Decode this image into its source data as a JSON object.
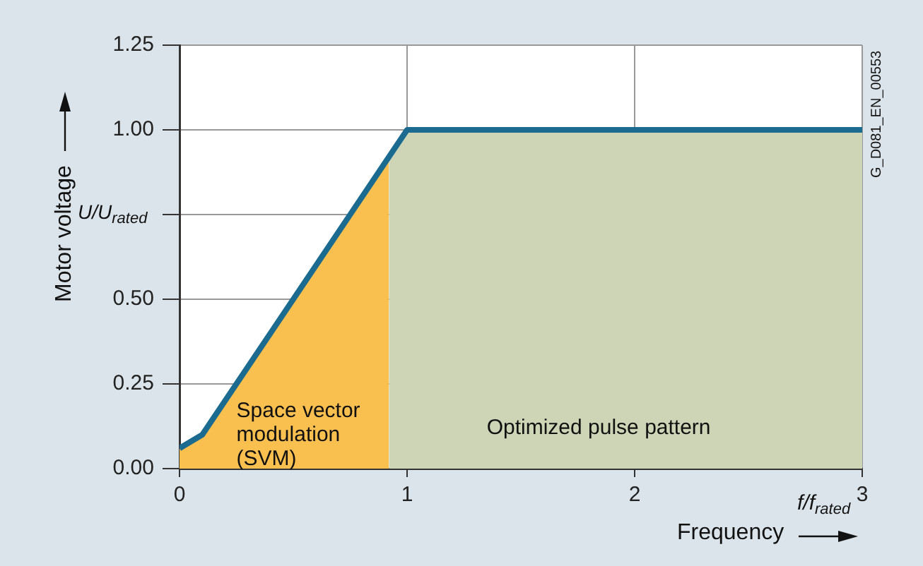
{
  "chart_data": {
    "type": "line",
    "xlabel": "Frequency",
    "ylabel": "Motor voltage",
    "xlim": [
      0,
      3
    ],
    "xticks": [
      0,
      1,
      2,
      3
    ],
    "ylim": [
      0,
      1.25
    ],
    "yticks": [
      {
        "value": 0,
        "label": "0.00"
      },
      {
        "value": 0.25,
        "label": "0.25"
      },
      {
        "value": 0.5,
        "label": "0.50"
      },
      {
        "value": 0.75,
        "label": null
      },
      {
        "value": 1,
        "label": "1.00"
      },
      1.25
    ],
    "grid": true,
    "legend": false,
    "marker": "none",
    "line_style": "solid",
    "series": [
      {
        "type": "area",
        "color": "#f9bf4f",
        "x": [
          0,
          0.1,
          0.92
        ],
        "values": [
          0.06,
          0.1,
          0.91
        ]
      },
      {
        "type": "area",
        "color": "#cdd5b6",
        "x": [
          0.92,
          1,
          3
        ],
        "values": [
          0.91,
          1,
          1
        ]
      },
      {
        "type": "line",
        "color": "#1a6b8f",
        "x": [
          0,
          0.1,
          1,
          3
        ],
        "values": [
          0.06,
          0.1,
          1,
          1
        ]
      }
    ],
    "annotations": [
      "Space vector modulation (SVM)",
      "Optimized pulse pattern",
      "U/U$_{rated}$",
      "f/f$_{rated}$",
      "G_D081_EN_00553"
    ]
  }
}
